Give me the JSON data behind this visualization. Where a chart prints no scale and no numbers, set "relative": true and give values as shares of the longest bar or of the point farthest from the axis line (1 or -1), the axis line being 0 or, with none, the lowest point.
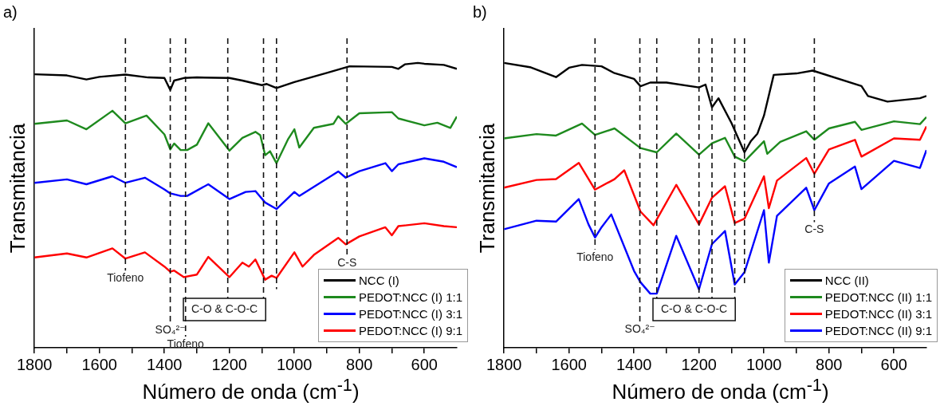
{
  "chart_data": [
    {
      "type": "line",
      "title": "a)",
      "xlabel": "Número de onda (cm$^{-1}$)",
      "ylabel": "Transmitancia",
      "relative": true,
      "xlim": [
        1800,
        500
      ],
      "xticks": [
        1800,
        {
          "value": 1700,
          "label": null
        },
        1600,
        {
          "value": 1500,
          "label": null
        },
        1400,
        {
          "value": 1300,
          "label": null
        },
        1200,
        {
          "value": 1100,
          "label": null
        },
        1000,
        {
          "value": 900,
          "label": null
        },
        800,
        {
          "value": 700,
          "label": null
        },
        600
      ],
      "legend": "bottom right",
      "ref_lines": [
        {
          "axis": "x",
          "value": 1520,
          "label": "Tiofeno",
          "line_style": "dashed"
        },
        {
          "axis": "x",
          "value": 1382,
          "label": "SO₄²⁻",
          "line_style": "dashed"
        },
        {
          "axis": "x",
          "value": 1335,
          "label": "Tiofeno",
          "line_style": "dashed"
        },
        {
          "axis": "x",
          "value": 1205,
          "line_style": "dashed"
        },
        {
          "axis": "x",
          "value": 1095,
          "line_style": "dashed"
        },
        {
          "axis": "x",
          "value": 1055,
          "line_style": "dashed"
        },
        {
          "axis": "x",
          "value": 838,
          "label": "C-S",
          "line_style": "dashed"
        }
      ],
      "annotations": [
        "C-O & C-O-C"
      ],
      "series": [
        {
          "name": "NCC (I)",
          "color": "#000000",
          "x": [
            1800,
            1700,
            1640,
            1600,
            1520,
            1450,
            1400,
            1382,
            1370,
            1340,
            1300,
            1200,
            1160,
            1100,
            1085,
            1055,
            1000,
            900,
            830,
            700,
            680,
            660,
            620,
            600,
            540,
            500
          ],
          "values": [
            0.96,
            0.956,
            0.942,
            0.951,
            0.959,
            0.949,
            0.947,
            0.905,
            0.938,
            0.947,
            0.949,
            0.947,
            0.938,
            0.922,
            0.926,
            0.912,
            0.933,
            0.965,
            0.988,
            0.986,
            0.979,
            0.995,
            1.0,
            0.997,
            0.993,
            0.979
          ]
        },
        {
          "name": "PEDOT:NCC (I) 1:1",
          "color": "#1e8a1e",
          "x": [
            1800,
            1700,
            1640,
            1560,
            1520,
            1470,
            1455,
            1400,
            1382,
            1370,
            1350,
            1330,
            1300,
            1265,
            1200,
            1160,
            1120,
            1105,
            1090,
            1075,
            1055,
            1020,
            1000,
            985,
            940,
            880,
            865,
            842,
            800,
            700,
            680,
            600,
            560,
            520,
            500
          ],
          "values": [
            0.786,
            0.798,
            0.767,
            0.832,
            0.788,
            0.809,
            0.815,
            0.749,
            0.696,
            0.717,
            0.694,
            0.694,
            0.713,
            0.788,
            0.692,
            0.737,
            0.758,
            0.746,
            0.676,
            0.69,
            0.648,
            0.731,
            0.767,
            0.703,
            0.772,
            0.786,
            0.813,
            0.786,
            0.823,
            0.827,
            0.805,
            0.781,
            0.79,
            0.772,
            0.812
          ]
        },
        {
          "name": "PEDOT:NCC (I) 3:1",
          "color": "#0000ff",
          "x": [
            1800,
            1700,
            1640,
            1560,
            1520,
            1460,
            1400,
            1382,
            1350,
            1330,
            1265,
            1200,
            1150,
            1120,
            1090,
            1055,
            1000,
            985,
            865,
            842,
            800,
            720,
            700,
            680,
            600,
            540,
            500
          ],
          "values": [
            0.579,
            0.591,
            0.574,
            0.602,
            0.579,
            0.597,
            0.556,
            0.542,
            0.533,
            0.533,
            0.574,
            0.522,
            0.547,
            0.55,
            0.51,
            0.487,
            0.547,
            0.533,
            0.619,
            0.597,
            0.62,
            0.648,
            0.62,
            0.644,
            0.665,
            0.653,
            0.634
          ]
        },
        {
          "name": "PEDOT:NCC (I) 9:1",
          "color": "#ff0000",
          "x": [
            1800,
            1700,
            1640,
            1560,
            1520,
            1460,
            1400,
            1382,
            1370,
            1340,
            1300,
            1265,
            1200,
            1160,
            1140,
            1120,
            1090,
            1070,
            1055,
            1000,
            975,
            940,
            865,
            842,
            800,
            720,
            700,
            680,
            600,
            540,
            500
          ],
          "values": [
            0.317,
            0.331,
            0.317,
            0.349,
            0.313,
            0.335,
            0.285,
            0.267,
            0.271,
            0.248,
            0.257,
            0.319,
            0.248,
            0.299,
            0.285,
            0.31,
            0.239,
            0.253,
            0.245,
            0.335,
            0.285,
            0.326,
            0.386,
            0.363,
            0.391,
            0.423,
            0.395,
            0.427,
            0.437,
            0.427,
            0.423
          ]
        }
      ]
    },
    {
      "type": "line",
      "title": "b)",
      "xlabel": "Número de onda (cm$^{-1}$)",
      "ylabel": "Transmitancia",
      "relative": true,
      "xlim": [
        1800,
        500
      ],
      "xticks": [
        1800,
        {
          "value": 1700,
          "label": null
        },
        1600,
        {
          "value": 1500,
          "label": null
        },
        1400,
        {
          "value": 1300,
          "label": null
        },
        1200,
        {
          "value": 1100,
          "label": null
        },
        1000,
        {
          "value": 900,
          "label": null
        },
        800,
        {
          "value": 700,
          "label": null
        },
        600
      ],
      "legend": "bottom right",
      "ref_lines": [
        {
          "axis": "x",
          "value": 1520,
          "label": "Tiofeno",
          "line_style": "dashed"
        },
        {
          "axis": "x",
          "value": 1382,
          "label": "SO₄²⁻",
          "line_style": "dashed"
        },
        {
          "axis": "x",
          "value": 1330,
          "line_style": "dashed"
        },
        {
          "axis": "x",
          "value": 1200,
          "line_style": "dashed"
        },
        {
          "axis": "x",
          "value": 1160,
          "line_style": "dashed"
        },
        {
          "axis": "x",
          "value": 1090,
          "line_style": "dashed"
        },
        {
          "axis": "x",
          "value": 1060,
          "line_style": "dashed"
        },
        {
          "axis": "x",
          "value": 845,
          "label": "C-S",
          "line_style": "dashed"
        }
      ],
      "annotations": [
        "C-O & C-O-C"
      ],
      "series": [
        {
          "name": "NCC (II)",
          "color": "#000000",
          "x": [
            1800,
            1720,
            1640,
            1600,
            1560,
            1500,
            1460,
            1400,
            1380,
            1350,
            1300,
            1200,
            1180,
            1160,
            1140,
            1100,
            1060,
            1040,
            1020,
            1000,
            970,
            900,
            850,
            700,
            680,
            620,
            520,
            500
          ],
          "values": [
            1.0,
            0.985,
            0.95,
            0.983,
            0.993,
            0.988,
            0.964,
            0.944,
            0.918,
            0.931,
            0.931,
            0.914,
            0.924,
            0.844,
            0.876,
            0.789,
            0.686,
            0.726,
            0.752,
            0.815,
            0.958,
            0.963,
            0.973,
            0.919,
            0.884,
            0.864,
            0.876,
            0.884
          ]
        },
        {
          "name": "PEDOT:NCC (II) 1:1",
          "color": "#1e8a1e",
          "x": [
            1800,
            1700,
            1640,
            1560,
            1520,
            1460,
            1380,
            1330,
            1270,
            1200,
            1160,
            1120,
            1090,
            1060,
            1000,
            990,
            950,
            870,
            845,
            800,
            720,
            700,
            600,
            520,
            500
          ],
          "values": [
            0.735,
            0.75,
            0.745,
            0.787,
            0.747,
            0.77,
            0.701,
            0.686,
            0.752,
            0.678,
            0.718,
            0.737,
            0.671,
            0.654,
            0.725,
            0.681,
            0.723,
            0.76,
            0.73,
            0.77,
            0.793,
            0.765,
            0.795,
            0.785,
            0.81
          ]
        },
        {
          "name": "PEDOT:NCC (II) 3:1",
          "color": "#ff0000",
          "x": [
            1800,
            1700,
            1640,
            1570,
            1520,
            1460,
            1430,
            1380,
            1340,
            1270,
            1200,
            1160,
            1120,
            1090,
            1060,
            1000,
            985,
            960,
            870,
            845,
            800,
            720,
            700,
            600,
            520,
            500
          ],
          "values": [
            0.562,
            0.589,
            0.592,
            0.649,
            0.555,
            0.592,
            0.623,
            0.478,
            0.43,
            0.572,
            0.433,
            0.527,
            0.567,
            0.438,
            0.453,
            0.602,
            0.49,
            0.587,
            0.666,
            0.611,
            0.696,
            0.73,
            0.671,
            0.735,
            0.73,
            0.777
          ]
        },
        {
          "name": "PEDOT:NCC (II) 9:1",
          "color": "#0000ff",
          "x": [
            1800,
            1700,
            1640,
            1570,
            1540,
            1520,
            1500,
            1470,
            1400,
            1380,
            1350,
            1330,
            1270,
            1200,
            1160,
            1120,
            1090,
            1060,
            1000,
            985,
            960,
            870,
            845,
            800,
            720,
            700,
            600,
            520,
            500
          ],
          "values": [
            0.416,
            0.446,
            0.443,
            0.522,
            0.433,
            0.387,
            0.423,
            0.468,
            0.27,
            0.23,
            0.19,
            0.19,
            0.393,
            0.205,
            0.364,
            0.41,
            0.222,
            0.265,
            0.483,
            0.299,
            0.463,
            0.562,
            0.483,
            0.577,
            0.636,
            0.557,
            0.656,
            0.631,
            0.694
          ]
        }
      ]
    }
  ]
}
